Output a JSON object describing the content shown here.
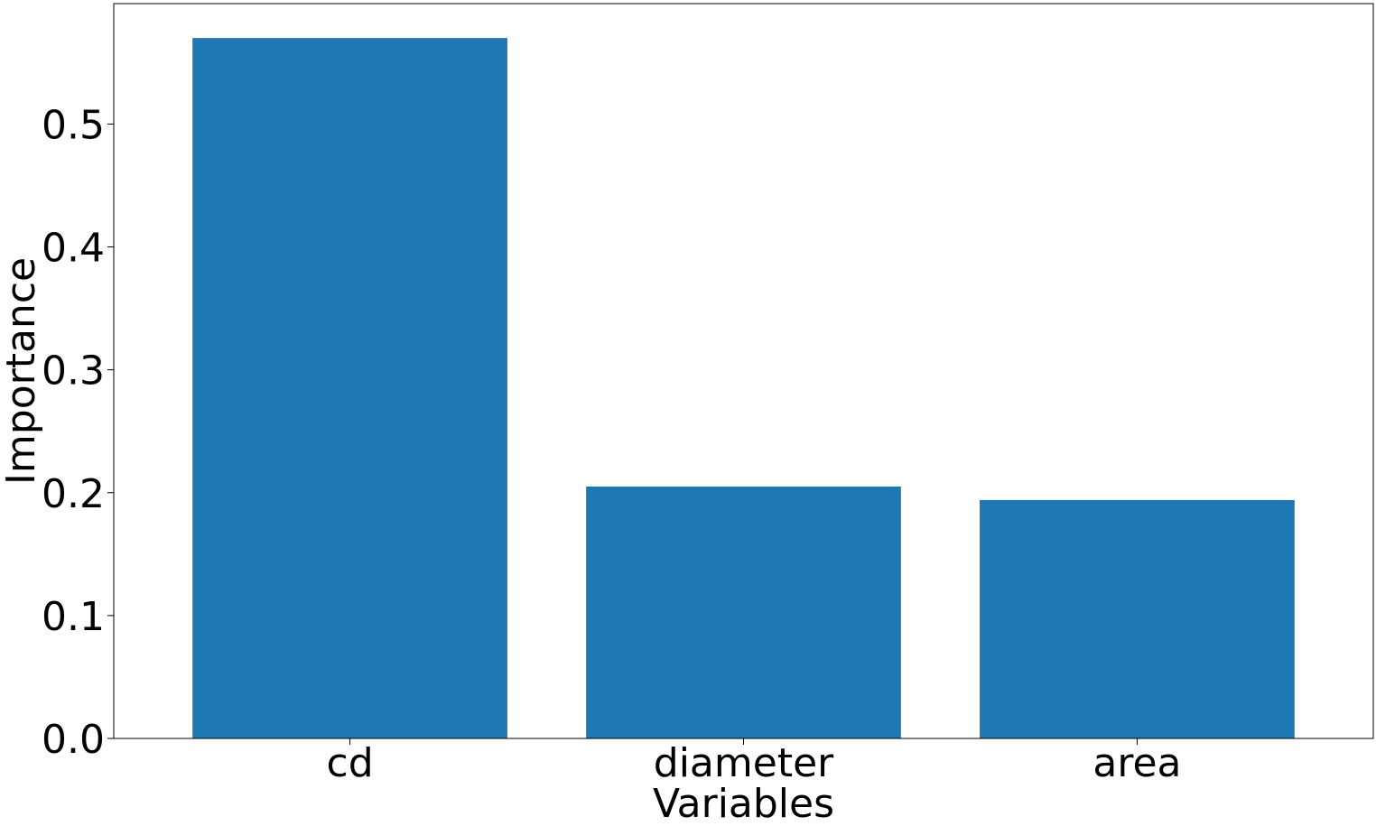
{
  "chart_data": {
    "type": "bar",
    "title": "",
    "xlabel": "Variables",
    "ylabel": "Importance",
    "categories": [
      "cd",
      "diameter",
      "area"
    ],
    "values": [
      0.57,
      0.205,
      0.194
    ],
    "ylim": [
      0,
      0.598
    ],
    "yticks": [
      "0.0",
      "0.1",
      "0.2",
      "0.3",
      "0.4",
      "0.5"
    ],
    "grid": false,
    "bar_color": "#1f77b4"
  }
}
